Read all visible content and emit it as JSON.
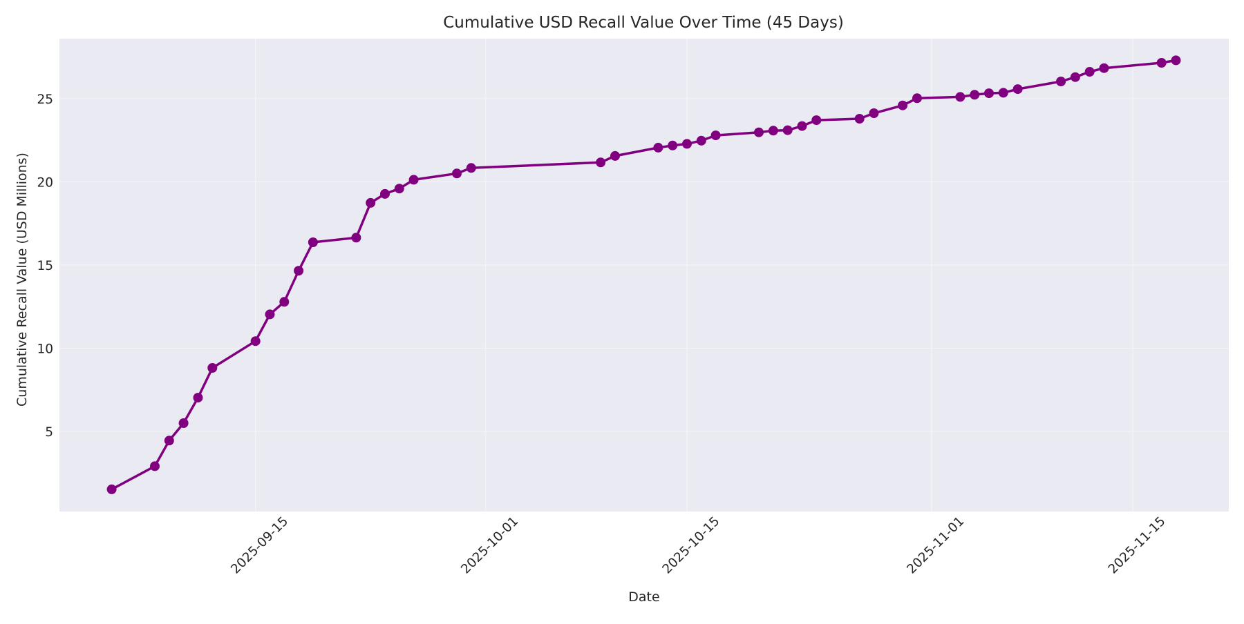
{
  "chart_data": {
    "type": "line",
    "title": "Cumulative USD Recall Value Over Time (45 Days)",
    "xlabel": "Date",
    "ylabel": "Cumulative Recall Value (USD Millions)",
    "ylim": [
      0.2,
      28.6
    ],
    "xlim": [
      "2025-09-01",
      "2025-11-20"
    ],
    "grid": true,
    "legend": null,
    "style": {
      "line_color": "#800080",
      "marker": "circle",
      "background": "#EAEAF2",
      "grid_color": "#F4F4F8"
    },
    "yticks": [
      5,
      10,
      15,
      20,
      25
    ],
    "xticks": [
      "2025-09-15",
      "2025-10-01",
      "2025-10-15",
      "2025-11-01",
      "2025-11-15"
    ],
    "xtick_rotation": 45,
    "series": [
      {
        "name": "Cumulative Recall Value",
        "x": [
          "2025-09-05",
          "2025-09-08",
          "2025-09-09",
          "2025-09-10",
          "2025-09-11",
          "2025-09-12",
          "2025-09-15",
          "2025-09-16",
          "2025-09-17",
          "2025-09-18",
          "2025-09-19",
          "2025-09-22",
          "2025-09-23",
          "2025-09-24",
          "2025-09-25",
          "2025-09-26",
          "2025-09-29",
          "2025-09-30",
          "2025-10-09",
          "2025-10-10",
          "2025-10-13",
          "2025-10-14",
          "2025-10-15",
          "2025-10-16",
          "2025-10-17",
          "2025-10-20",
          "2025-10-21",
          "2025-10-22",
          "2025-10-23",
          "2025-10-24",
          "2025-10-27",
          "2025-10-28",
          "2025-10-30",
          "2025-10-31",
          "2025-11-03",
          "2025-11-04",
          "2025-11-05",
          "2025-11-06",
          "2025-11-07",
          "2025-11-10",
          "2025-11-11",
          "2025-11-12",
          "2025-11-13",
          "2025-11-17",
          "2025-11-18"
        ],
        "values": [
          1.51,
          2.9,
          4.44,
          5.49,
          7.02,
          8.81,
          10.42,
          12.03,
          12.78,
          14.65,
          16.36,
          16.64,
          18.73,
          19.27,
          19.59,
          20.12,
          20.5,
          20.83,
          21.16,
          21.55,
          22.05,
          22.18,
          22.28,
          22.47,
          22.79,
          22.97,
          23.07,
          23.1,
          23.35,
          23.7,
          23.79,
          24.12,
          24.59,
          25.02,
          25.1,
          25.23,
          25.32,
          25.35,
          25.57,
          26.03,
          26.29,
          26.61,
          26.83,
          27.15,
          27.3
        ]
      }
    ]
  }
}
